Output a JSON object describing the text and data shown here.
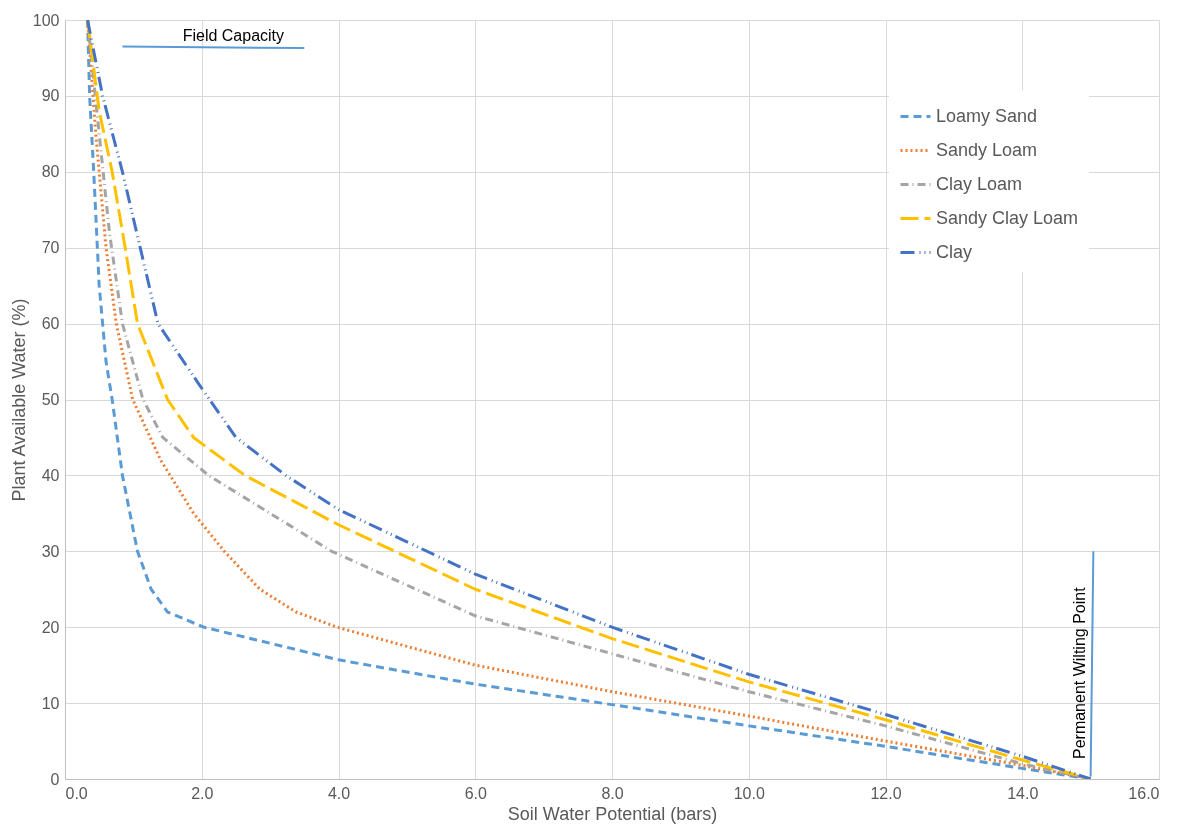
{
  "chart_data": {
    "type": "line",
    "xlabel": "Soil Water Potential (bars)",
    "ylabel": "Plant Available Water (%)",
    "xlim": [
      0,
      16
    ],
    "ylim": [
      0,
      100
    ],
    "xticks": [
      {
        "value": 0,
        "label": "0.0"
      },
      {
        "value": 2,
        "label": "2.0"
      },
      {
        "value": 4,
        "label": "4.0"
      },
      {
        "value": 6,
        "label": "6.0"
      },
      {
        "value": 8,
        "label": "8.0"
      },
      {
        "value": 10,
        "label": "10.0"
      },
      {
        "value": 12,
        "label": "12.0"
      },
      {
        "value": 14,
        "label": "14.0"
      },
      {
        "value": 16,
        "label": "16.0"
      }
    ],
    "yticks": [
      0,
      10,
      20,
      30,
      40,
      50,
      60,
      70,
      80,
      90,
      100
    ],
    "grid": true,
    "legend": "top right",
    "marker": "none",
    "series": [
      {
        "name": "Loamy Sand",
        "color": "#5b9bd5",
        "line_style": "dashed",
        "x": [
          0.33,
          0.36,
          0.42,
          0.5,
          0.6,
          0.69,
          0.84,
          1.06,
          1.26,
          1.5,
          2.03,
          4,
          6,
          8,
          10,
          12,
          14,
          15
        ],
        "values": [
          100,
          90,
          80,
          65,
          55,
          50,
          40,
          30,
          25,
          22,
          20,
          15.7,
          12.5,
          9.8,
          7,
          4.3,
          1.4,
          0
        ]
      },
      {
        "name": "Sandy Loam",
        "color": "#ed7d31",
        "line_style": "dotted",
        "x": [
          0.33,
          0.45,
          0.6,
          0.75,
          0.99,
          1.4,
          1.88,
          2.33,
          2.85,
          3.38,
          3.98,
          6,
          8,
          10,
          12,
          14,
          15
        ],
        "values": [
          100,
          85,
          70,
          60,
          50,
          42,
          35,
          30,
          25,
          22,
          20,
          15,
          11.5,
          8.3,
          5,
          1.8,
          0
        ]
      },
      {
        "name": "Clay Loam",
        "color": "#a5a5a5",
        "line_style": "dashed",
        "x": [
          0.33,
          0.5,
          0.65,
          0.84,
          1.14,
          1.43,
          2.1,
          3.0,
          3.9,
          6,
          8,
          10,
          12,
          14,
          15
        ],
        "values": [
          100,
          85,
          72,
          60,
          50,
          45,
          40,
          35,
          30,
          21.5,
          16.5,
          11.5,
          7,
          2,
          0
        ]
      },
      {
        "name": "Sandy Clay Loam",
        "color": "#ffc000",
        "line_style": "dashed",
        "x": [
          0.33,
          0.5,
          0.69,
          0.88,
          1.06,
          1.5,
          1.88,
          2.63,
          4,
          6,
          8,
          10,
          12,
          14,
          15
        ],
        "values": [
          100,
          88,
          80,
          70,
          60,
          50,
          45,
          40,
          33.5,
          25,
          18.5,
          12.8,
          7.8,
          2.5,
          0
        ]
      },
      {
        "name": "Clay",
        "color": "#4472c4",
        "line_style": "dashed",
        "x": [
          0.33,
          0.55,
          0.84,
          1.1,
          1.36,
          1.96,
          2.5,
          3.23,
          4,
          6,
          8,
          10,
          12,
          14,
          15
        ],
        "values": [
          100,
          90,
          80,
          70,
          60,
          52,
          45,
          40,
          35.5,
          27,
          20,
          13.8,
          8.5,
          3,
          0
        ]
      },
      {
        "color": "#5b9bd5",
        "line_style": "solid",
        "x": [
          0.84,
          3.5
        ],
        "values": [
          96.5,
          96.3
        ]
      },
      {
        "color": "#5b9bd5",
        "line_style": "solid",
        "x": [
          15.04,
          15.0
        ],
        "values": [
          30,
          0.3
        ]
      }
    ],
    "annotations": [
      "Field Capacity",
      "Permanent Wilting Point"
    ]
  }
}
